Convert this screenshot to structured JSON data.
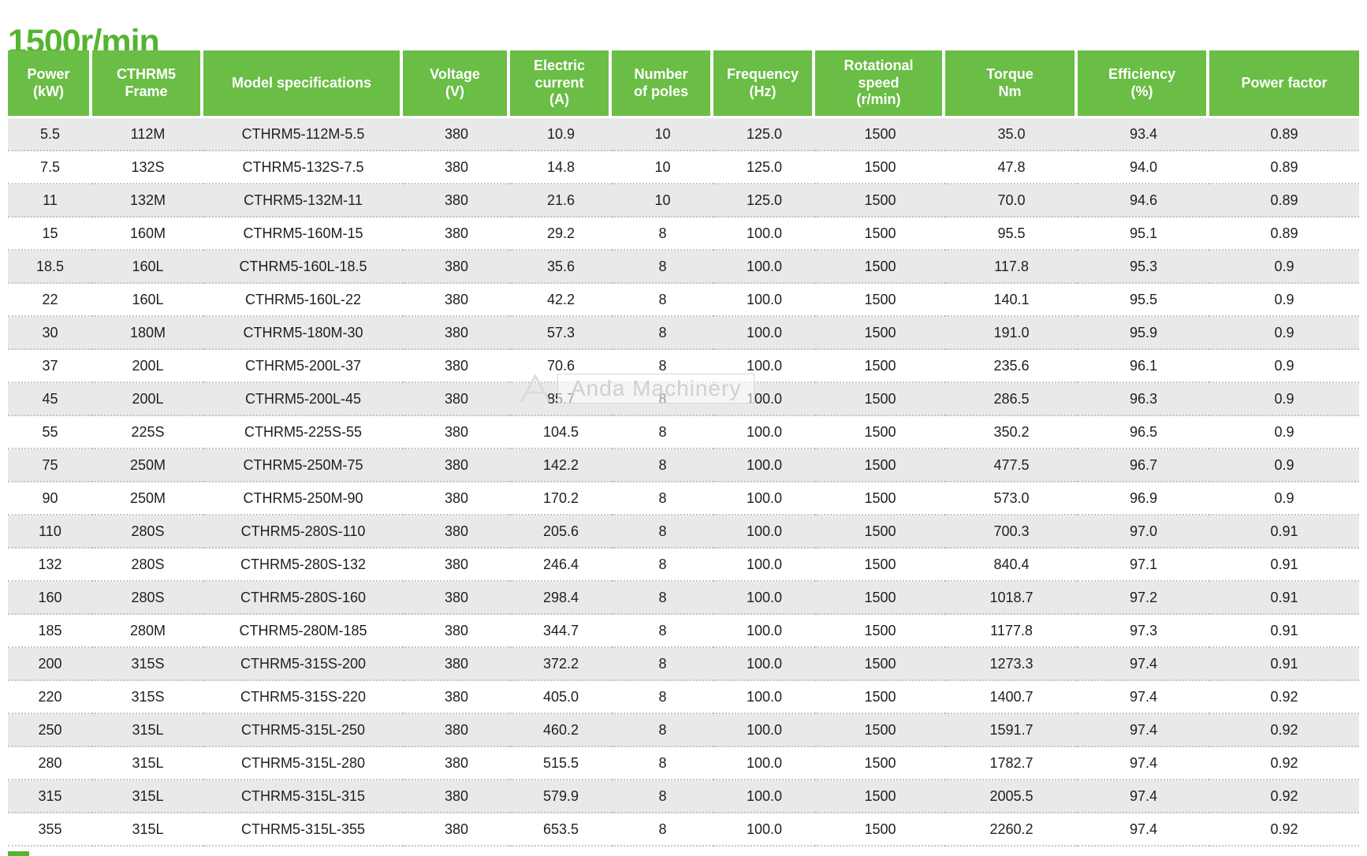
{
  "page": {
    "title": "1500r/min"
  },
  "watermark": {
    "logo": "anda-logo",
    "text": "Anda Machinery"
  },
  "colors": {
    "title_green": "#55b430",
    "header_green": "#6abd45",
    "row_alt": "#e9e9e9",
    "header_text": "#ffffff",
    "body_text": "#1f1f1f"
  },
  "chart_data": {
    "type": "table",
    "title": "1500r/min",
    "columns": [
      {
        "id": "power",
        "label": "Power\n(kW)"
      },
      {
        "id": "frame",
        "label": "CTHRM5\nFrame"
      },
      {
        "id": "model",
        "label": "Model specifications"
      },
      {
        "id": "voltage",
        "label": "Voltage\n(V)"
      },
      {
        "id": "current",
        "label": "Electric\ncurrent\n(A)"
      },
      {
        "id": "poles",
        "label": "Number\nof poles"
      },
      {
        "id": "frequency",
        "label": "Frequency\n(Hz)"
      },
      {
        "id": "speed",
        "label": "Rotational\nspeed\n(r/min)"
      },
      {
        "id": "torque",
        "label": "Torque\nNm"
      },
      {
        "id": "efficiency",
        "label": "Efficiency\n(%)"
      },
      {
        "id": "power-factor",
        "label": "Power factor"
      }
    ],
    "rows": [
      [
        "5.5",
        "112M",
        "CTHRM5-112M-5.5",
        "380",
        "10.9",
        "10",
        "125.0",
        "1500",
        "35.0",
        "93.4",
        "0.89"
      ],
      [
        "7.5",
        "132S",
        "CTHRM5-132S-7.5",
        "380",
        "14.8",
        "10",
        "125.0",
        "1500",
        "47.8",
        "94.0",
        "0.89"
      ],
      [
        "11",
        "132M",
        "CTHRM5-132M-11",
        "380",
        "21.6",
        "10",
        "125.0",
        "1500",
        "70.0",
        "94.6",
        "0.89"
      ],
      [
        "15",
        "160M",
        "CTHRM5-160M-15",
        "380",
        "29.2",
        "8",
        "100.0",
        "1500",
        "95.5",
        "95.1",
        "0.89"
      ],
      [
        "18.5",
        "160L",
        "CTHRM5-160L-18.5",
        "380",
        "35.6",
        "8",
        "100.0",
        "1500",
        "117.8",
        "95.3",
        "0.9"
      ],
      [
        "22",
        "160L",
        "CTHRM5-160L-22",
        "380",
        "42.2",
        "8",
        "100.0",
        "1500",
        "140.1",
        "95.5",
        "0.9"
      ],
      [
        "30",
        "180M",
        "CTHRM5-180M-30",
        "380",
        "57.3",
        "8",
        "100.0",
        "1500",
        "191.0",
        "95.9",
        "0.9"
      ],
      [
        "37",
        "200L",
        "CTHRM5-200L-37",
        "380",
        "70.6",
        "8",
        "100.0",
        "1500",
        "235.6",
        "96.1",
        "0.9"
      ],
      [
        "45",
        "200L",
        "CTHRM5-200L-45",
        "380",
        "85.7",
        "8",
        "100.0",
        "1500",
        "286.5",
        "96.3",
        "0.9"
      ],
      [
        "55",
        "225S",
        "CTHRM5-225S-55",
        "380",
        "104.5",
        "8",
        "100.0",
        "1500",
        "350.2",
        "96.5",
        "0.9"
      ],
      [
        "75",
        "250M",
        "CTHRM5-250M-75",
        "380",
        "142.2",
        "8",
        "100.0",
        "1500",
        "477.5",
        "96.7",
        "0.9"
      ],
      [
        "90",
        "250M",
        "CTHRM5-250M-90",
        "380",
        "170.2",
        "8",
        "100.0",
        "1500",
        "573.0",
        "96.9",
        "0.9"
      ],
      [
        "110",
        "280S",
        "CTHRM5-280S-110",
        "380",
        "205.6",
        "8",
        "100.0",
        "1500",
        "700.3",
        "97.0",
        "0.91"
      ],
      [
        "132",
        "280S",
        "CTHRM5-280S-132",
        "380",
        "246.4",
        "8",
        "100.0",
        "1500",
        "840.4",
        "97.1",
        "0.91"
      ],
      [
        "160",
        "280S",
        "CTHRM5-280S-160",
        "380",
        "298.4",
        "8",
        "100.0",
        "1500",
        "1018.7",
        "97.2",
        "0.91"
      ],
      [
        "185",
        "280M",
        "CTHRM5-280M-185",
        "380",
        "344.7",
        "8",
        "100.0",
        "1500",
        "1177.8",
        "97.3",
        "0.91"
      ],
      [
        "200",
        "315S",
        "CTHRM5-315S-200",
        "380",
        "372.2",
        "8",
        "100.0",
        "1500",
        "1273.3",
        "97.4",
        "0.91"
      ],
      [
        "220",
        "315S",
        "CTHRM5-315S-220",
        "380",
        "405.0",
        "8",
        "100.0",
        "1500",
        "1400.7",
        "97.4",
        "0.92"
      ],
      [
        "250",
        "315L",
        "CTHRM5-315L-250",
        "380",
        "460.2",
        "8",
        "100.0",
        "1500",
        "1591.7",
        "97.4",
        "0.92"
      ],
      [
        "280",
        "315L",
        "CTHRM5-315L-280",
        "380",
        "515.5",
        "8",
        "100.0",
        "1500",
        "1782.7",
        "97.4",
        "0.92"
      ],
      [
        "315",
        "315L",
        "CTHRM5-315L-315",
        "380",
        "579.9",
        "8",
        "100.0",
        "1500",
        "2005.5",
        "97.4",
        "0.92"
      ],
      [
        "355",
        "315L",
        "CTHRM5-315L-355",
        "380",
        "653.5",
        "8",
        "100.0",
        "1500",
        "2260.2",
        "97.4",
        "0.92"
      ]
    ]
  }
}
